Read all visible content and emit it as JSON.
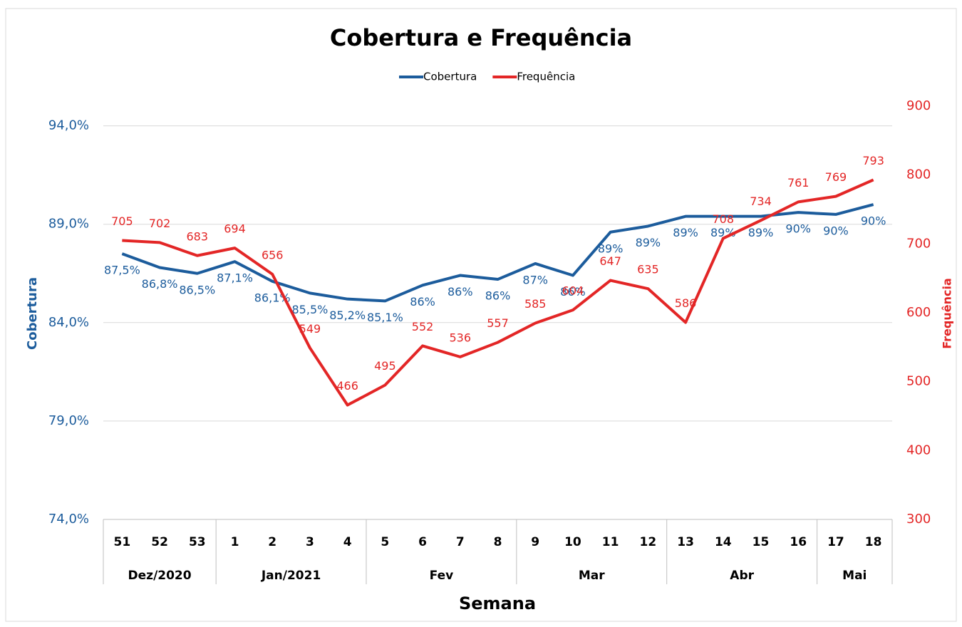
{
  "chart_data": {
    "type": "line",
    "title": "Cobertura e Frequência",
    "x_label": "Semana",
    "y_label": "Cobertura",
    "y2_label": "Frequência",
    "categories": [
      "51",
      "52",
      "53",
      "1",
      "2",
      "3",
      "4",
      "5",
      "6",
      "7",
      "8",
      "9",
      "10",
      "11",
      "12",
      "13",
      "14",
      "15",
      "16",
      "17",
      "18"
    ],
    "category_groups": [
      "Dez/2020",
      null,
      null,
      "Jan/2021",
      null,
      null,
      null,
      "Fev",
      null,
      null,
      null,
      "Mar",
      null,
      null,
      null,
      "Abr",
      null,
      null,
      null,
      "Mai",
      null
    ],
    "ylim": [
      74,
      95
    ],
    "yticks": [
      {
        "value": 74,
        "label": "74,0%"
      },
      {
        "value": 79,
        "label": "79,0%"
      },
      {
        "value": 84,
        "label": "84,0%"
      },
      {
        "value": 89,
        "label": "89,0%"
      },
      {
        "value": 94,
        "label": "94,0%"
      }
    ],
    "y2lim": [
      300,
      900
    ],
    "y2ticks": [
      300,
      400,
      500,
      600,
      700,
      800,
      900
    ],
    "grid": true,
    "legend": "top",
    "series": [
      {
        "name": "Cobertura",
        "color": "#1c5c9c",
        "values": [
          87.5,
          86.8,
          86.5,
          87.1,
          86.1,
          85.5,
          85.2,
          85.1,
          85.9,
          86.4,
          86.2,
          87.0,
          86.4,
          88.6,
          88.9,
          89.4,
          89.4,
          89.4,
          89.6,
          89.5,
          90.0
        ],
        "value_labels": [
          "87,5%",
          "86,8%",
          "86,5%",
          "87,1%",
          "86,1%",
          "85,5%",
          "85,2%",
          "85,1%",
          "86%",
          "86%",
          "86%",
          "87%",
          "86%",
          "89%",
          "89%",
          "89%",
          "89%",
          "89%",
          "90%",
          "90%",
          "90%"
        ]
      },
      {
        "name": "Frequência",
        "color": "#e32626",
        "axis": "y2",
        "values": [
          705,
          702,
          683,
          694,
          656,
          549,
          466,
          495,
          552,
          536,
          557,
          585,
          604,
          647,
          635,
          586,
          708,
          734,
          761,
          769,
          793
        ]
      }
    ]
  }
}
